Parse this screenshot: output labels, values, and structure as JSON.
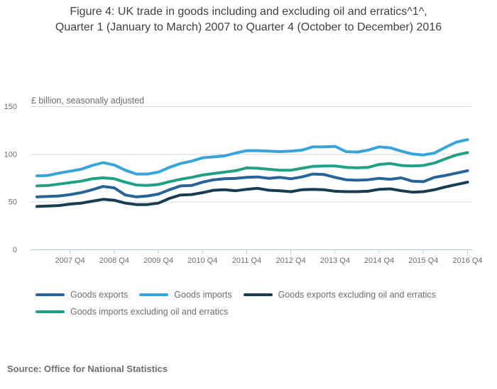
{
  "title": {
    "line1": "Figure 4: UK trade in goods including and excluding oil and erratics^1^,",
    "line2": "Quarter 1 (January to March) 2007 to Quarter 4 (October to December) 2016"
  },
  "source": "Source: Office for National Statistics",
  "chart_data": {
    "type": "line",
    "title": "Figure 4: UK trade in goods including and excluding oil and erratics^1^, Quarter 1 (January to March) 2007 to Quarter 4 (October to December) 2016",
    "ylabel": "£ billion, seasonally adjusted",
    "xlabel": "",
    "ylim": [
      0,
      150
    ],
    "y_ticks": [
      0,
      50,
      100,
      150
    ],
    "x_ticks": [
      "2007 Q4",
      "2008 Q4",
      "2009 Q4",
      "2010 Q4",
      "2011 Q4",
      "2012 Q4",
      "2013 Q4",
      "2014 Q4",
      "2015 Q4",
      "2016 Q4"
    ],
    "grid": "horizontal",
    "legend_position": "bottom",
    "axis_color": "#b7c7d1",
    "grid_color": "#d9d9d9",
    "categories": [
      "2007 Q1",
      "2007 Q2",
      "2007 Q3",
      "2007 Q4",
      "2008 Q1",
      "2008 Q2",
      "2008 Q3",
      "2008 Q4",
      "2009 Q1",
      "2009 Q2",
      "2009 Q3",
      "2009 Q4",
      "2010 Q1",
      "2010 Q2",
      "2010 Q3",
      "2010 Q4",
      "2011 Q1",
      "2011 Q2",
      "2011 Q3",
      "2011 Q4",
      "2012 Q1",
      "2012 Q2",
      "2012 Q3",
      "2012 Q4",
      "2013 Q1",
      "2013 Q2",
      "2013 Q3",
      "2013 Q4",
      "2014 Q1",
      "2014 Q2",
      "2014 Q3",
      "2014 Q4",
      "2015 Q1",
      "2015 Q2",
      "2015 Q3",
      "2015 Q4",
      "2016 Q1",
      "2016 Q2",
      "2016 Q3",
      "2016 Q4"
    ],
    "series": [
      {
        "name": "Goods exports",
        "color": "#28649a",
        "values": [
          55,
          55.5,
          56,
          57.5,
          59.5,
          62.5,
          66,
          64.5,
          57,
          55,
          56,
          58,
          62.5,
          66.5,
          67,
          70.5,
          73,
          74,
          74.5,
          75.5,
          76,
          74.5,
          75.5,
          74,
          76,
          79,
          78.5,
          75.5,
          73,
          72.5,
          73,
          74.5,
          73.5,
          75,
          71.5,
          71,
          75.5,
          77.5,
          80,
          82.5
        ]
      },
      {
        "name": "Goods imports",
        "color": "#37a5dc",
        "values": [
          77,
          77.5,
          80,
          82,
          84,
          88,
          91,
          88.5,
          83,
          79,
          79,
          81,
          86,
          90,
          92.5,
          96,
          97,
          98,
          101,
          103.5,
          103.5,
          103,
          102.5,
          103,
          104,
          107.5,
          107.5,
          108,
          102.5,
          102,
          104,
          107.5,
          106.5,
          103,
          100,
          99,
          101,
          107,
          112.5,
          115
        ]
      },
      {
        "name": "Goods exports excluding oil and erratics",
        "color": "#193c55",
        "values": [
          45,
          45.5,
          46,
          47.5,
          48.5,
          50.5,
          52.5,
          51.5,
          48.5,
          47,
          47,
          48.5,
          53.5,
          57,
          57.5,
          59.5,
          62,
          62.5,
          61.5,
          63,
          64,
          62,
          61.5,
          60.5,
          62.5,
          63,
          62.5,
          61,
          60.5,
          60.5,
          61,
          63,
          63.5,
          61.5,
          60,
          60.5,
          62.5,
          65.5,
          68,
          70.5
        ]
      },
      {
        "name": "Goods imports excluding oil and erratics",
        "color": "#21a086",
        "values": [
          66.5,
          67,
          68.5,
          70,
          71.5,
          74,
          75,
          74,
          70.5,
          67.5,
          67,
          68,
          71,
          73.5,
          75.5,
          78,
          79.5,
          81,
          82.5,
          85.5,
          85,
          84,
          83,
          83,
          85,
          87,
          87.5,
          87.5,
          86,
          85.5,
          86,
          89,
          90,
          88,
          87.5,
          88,
          90.5,
          95,
          99,
          101.5
        ]
      }
    ]
  }
}
